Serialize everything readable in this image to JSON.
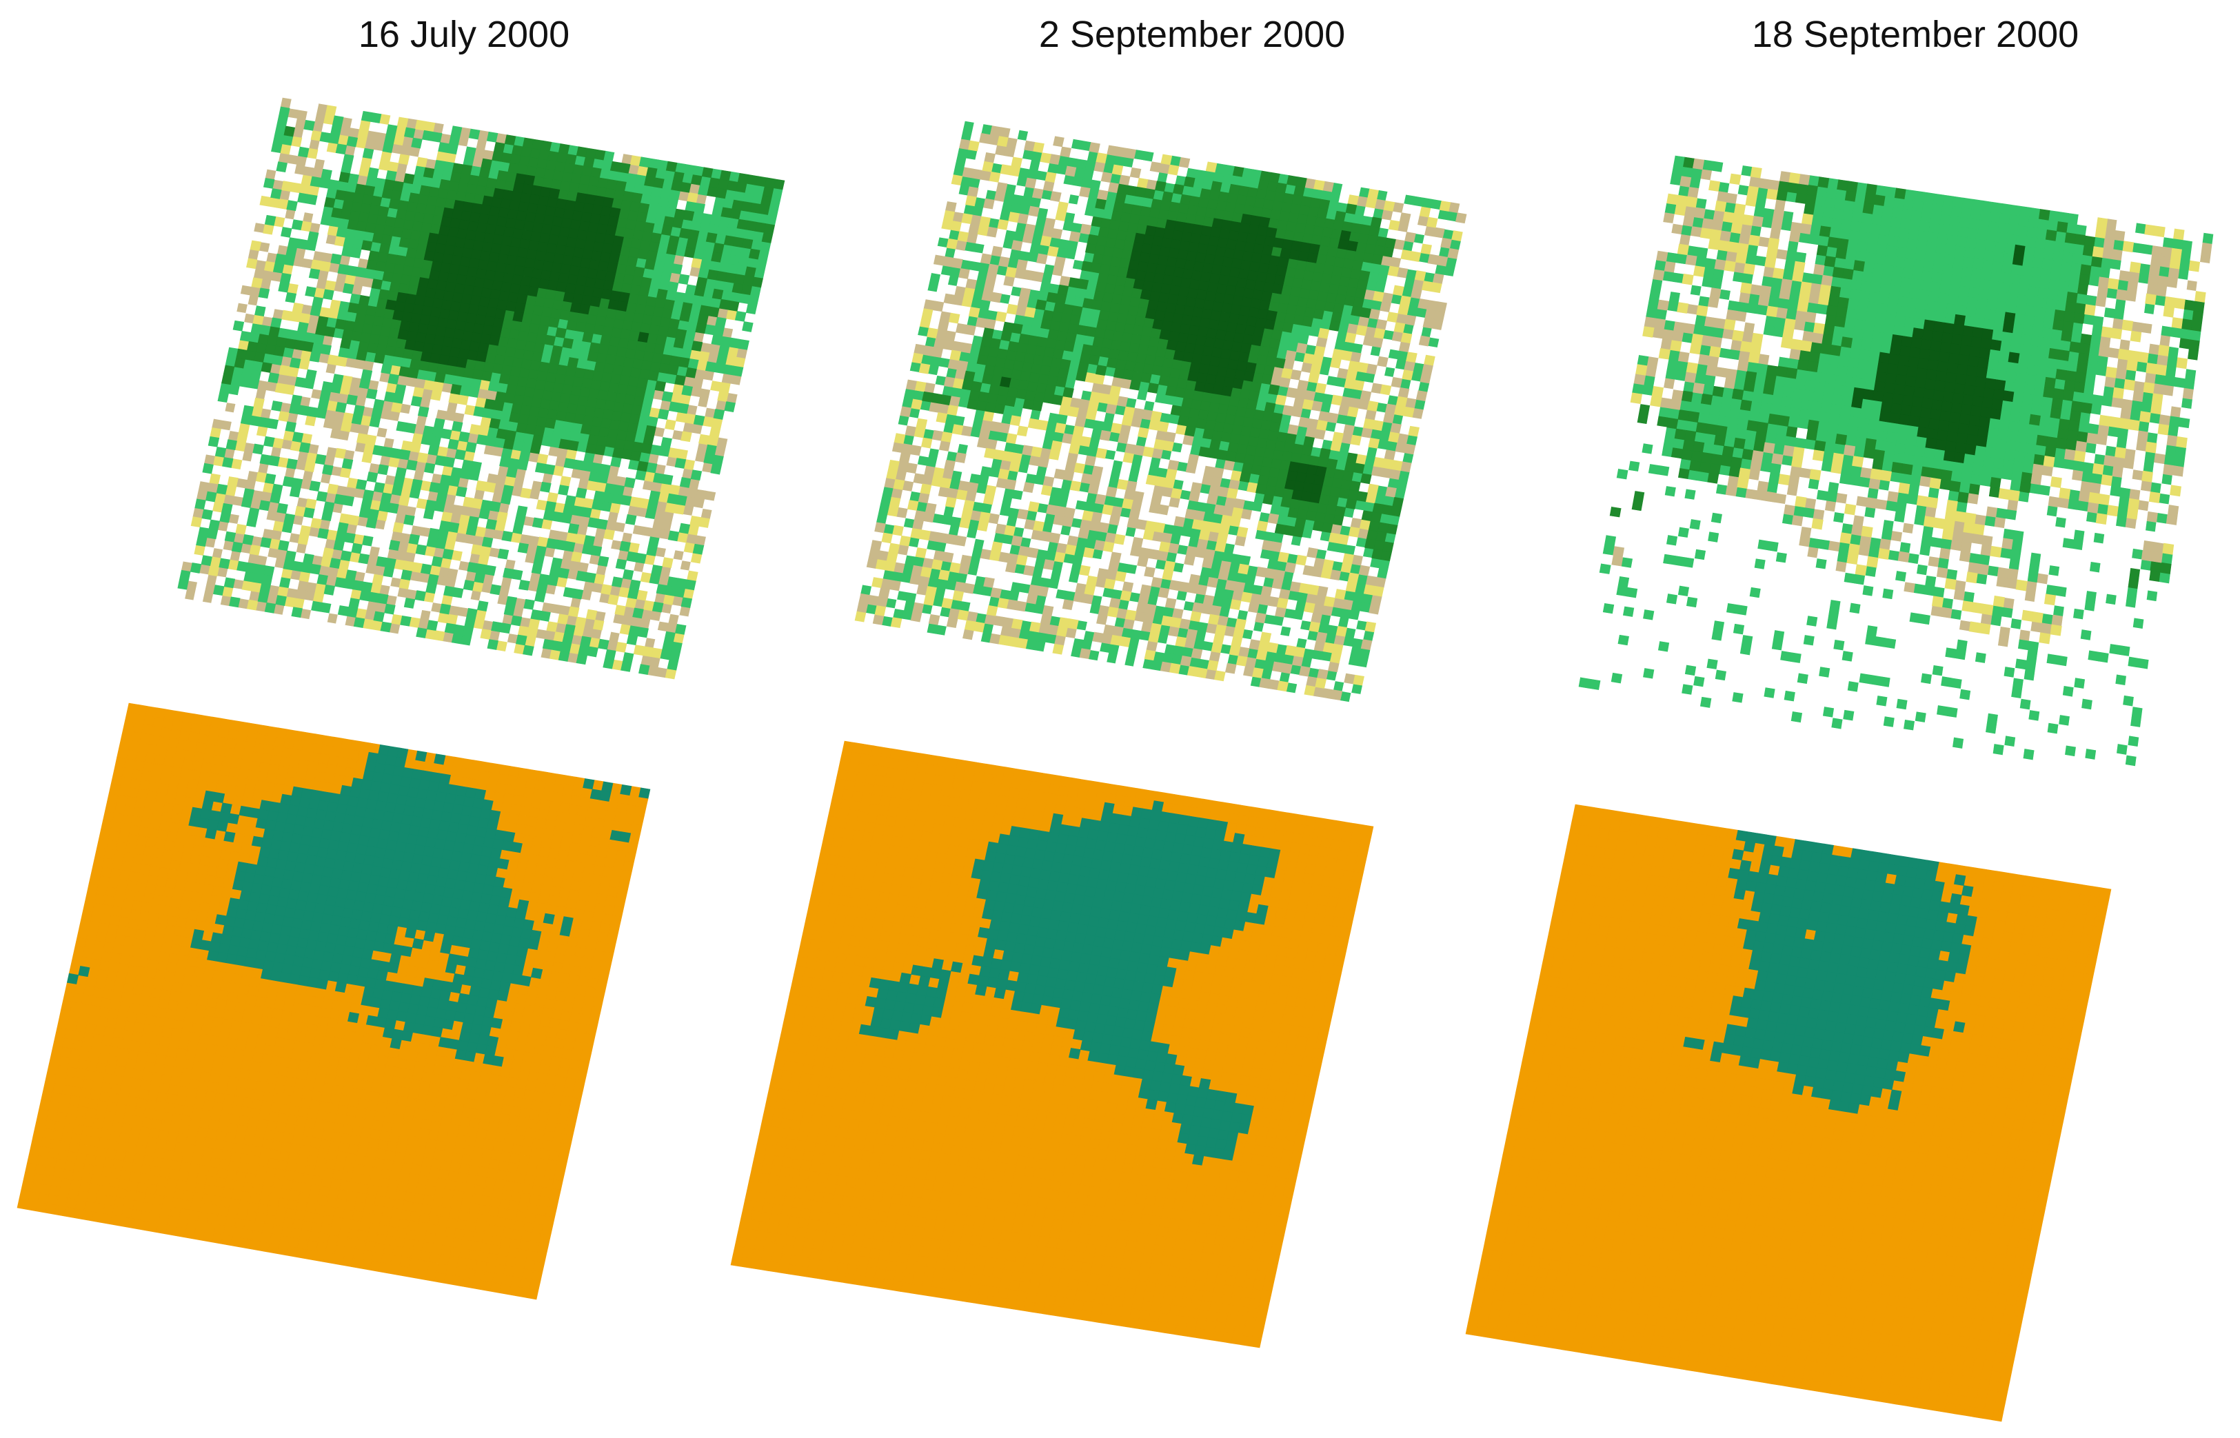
{
  "titles": [
    "16 July 2000",
    "2 September 2000",
    "18 September 2000"
  ],
  "legend_colors": {
    "imagery_dark_forest": "#0b5a14",
    "imagery_mid_forest": "#1f8a2c",
    "imagery_light_green": "#34c46a",
    "imagery_tan": "#c9b98a",
    "imagery_yellow": "#e7df6b",
    "imagery_white": "#ffffff",
    "class_teal": "#138a6e",
    "class_orange": "#f29d00"
  },
  "panels": [
    {
      "row": "imagery",
      "column": 1,
      "content": "satellite-composite"
    },
    {
      "row": "imagery",
      "column": 2,
      "content": "satellite-composite"
    },
    {
      "row": "imagery",
      "column": 3,
      "content": "satellite-composite"
    },
    {
      "row": "classification",
      "column": 1,
      "content": "binary-classification-map"
    },
    {
      "row": "classification",
      "column": 2,
      "content": "binary-classification-map"
    },
    {
      "row": "classification",
      "column": 3,
      "content": "binary-classification-map"
    }
  ]
}
